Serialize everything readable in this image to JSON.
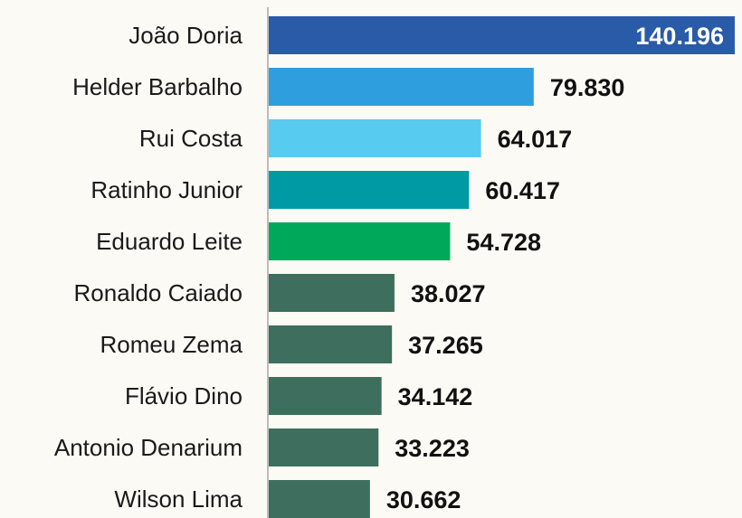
{
  "chart_data": {
    "type": "bar",
    "orientation": "horizontal",
    "categories": [
      "João Doria",
      "Helder Barbalho",
      "Rui Costa",
      "Ratinho Junior",
      "Eduardo Leite",
      "Ronaldo Caiado",
      "Romeu Zema",
      "Flávio Dino",
      "Antonio Denarium",
      "Wilson Lima"
    ],
    "values": [
      140196,
      79830,
      64017,
      60417,
      54728,
      38027,
      37265,
      34142,
      33223,
      30662
    ],
    "value_labels": [
      "140.196",
      "79.830",
      "64.017",
      "60.417",
      "54.728",
      "38.027",
      "37.265",
      "34.142",
      "33.223",
      "30.662"
    ],
    "colors": [
      "#2a5ba9",
      "#2f9ede",
      "#58cbf1",
      "#009aa5",
      "#00a85a",
      "#3d6e5e",
      "#3d6e5e",
      "#3d6e5e",
      "#3d6e5e",
      "#3d6e5e"
    ]
  }
}
